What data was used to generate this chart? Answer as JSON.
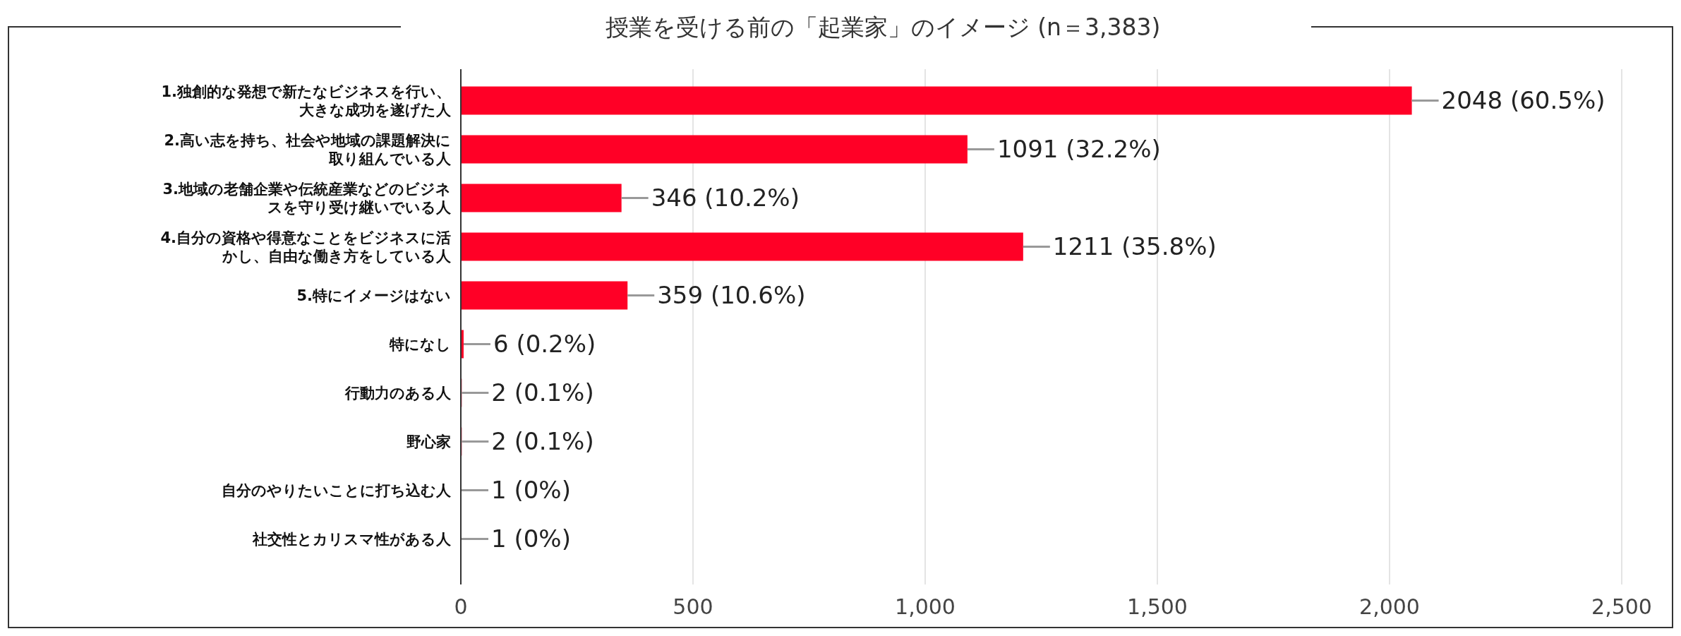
{
  "chart_data": {
    "type": "bar",
    "orientation": "horizontal",
    "title": "授業を受ける前の「起業家」のイメージ (n＝3,383)",
    "categories": [
      "1.独創的な発想で新たなビジネスを行い、大きな成功を遂げた人",
      "2.高い志を持ち、社会や地域の課題解決に取り組んでいる人",
      "3.地域の老舗企業や伝統産業などのビジネスを守り受け継いでいる人",
      "4.自分の資格や得意なことをビジネスに活かし、自由な働き方をしている人",
      "5.特にイメージはない",
      "特になし",
      "行動力のある人",
      "野心家",
      "自分のやりたいことに打ち込む人",
      "社交性とカリスマ性がある人"
    ],
    "values": [
      2048,
      1091,
      346,
      1211,
      359,
      6,
      2,
      2,
      1,
      1
    ],
    "value_labels": [
      "2048 (60.5%)",
      "1091 (32.2%)",
      "346 (10.2%)",
      "1211 (35.8%)",
      "359 (10.6%)",
      "6 (0.2%)",
      "2 (0.1%)",
      "2 (0.1%)",
      "1 (0%)",
      "1 (0%)"
    ],
    "color": "#ff0026",
    "xlim": [
      0,
      2500
    ],
    "xticks": [
      0,
      500,
      {
        "value": 1000,
        "label": "1,000"
      },
      {
        "value": 1500,
        "label": "1,500"
      },
      {
        "value": 2000,
        "label": "2,000"
      },
      {
        "value": 2500,
        "label": "2,500"
      }
    ],
    "grid": "x"
  }
}
